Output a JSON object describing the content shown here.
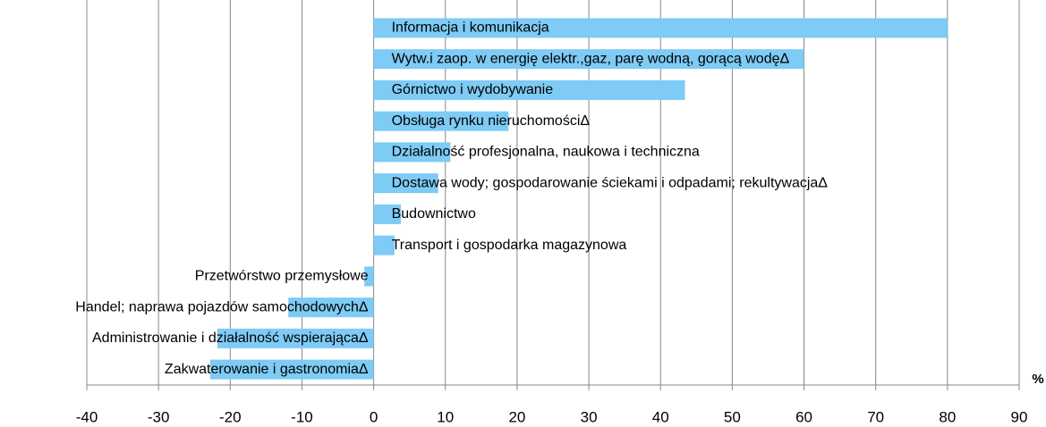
{
  "chart_data": {
    "type": "barh",
    "categories": [
      "Informacja i komunikacja",
      "Wytw.i zaop. w energię elektr.,gaz, parę wodną, gorącą wodęΔ",
      "Górnictwo i wydobywanie",
      "Obsługa rynku nieruchomościΔ",
      "Działalność profesjonalna, naukowa i techniczna",
      "Dostawa wody; gospodarowanie ściekami i odpadami; rekultywacjaΔ",
      "Budownictwo",
      "Transport i gospodarka magazynowa",
      "Przetwórstwo przemysłowe",
      "Handel; naprawa pojazdów samochodowychΔ",
      "Administrowanie i działalność wspierającaΔ",
      "Zakwaterowanie i gastronomiaΔ"
    ],
    "values": [
      80,
      60,
      43.4,
      18.8,
      10.7,
      9,
      3.8,
      2.9,
      -1.3,
      -11.9,
      -21.8,
      -22.8
    ],
    "color": "#7ecbf5",
    "x_label": "%",
    "xlim": [
      -40,
      90
    ],
    "xticks": [
      -40,
      -30,
      -20,
      -10,
      0,
      10,
      20,
      30,
      40,
      50,
      60,
      70,
      80,
      90
    ],
    "grid": true
  }
}
